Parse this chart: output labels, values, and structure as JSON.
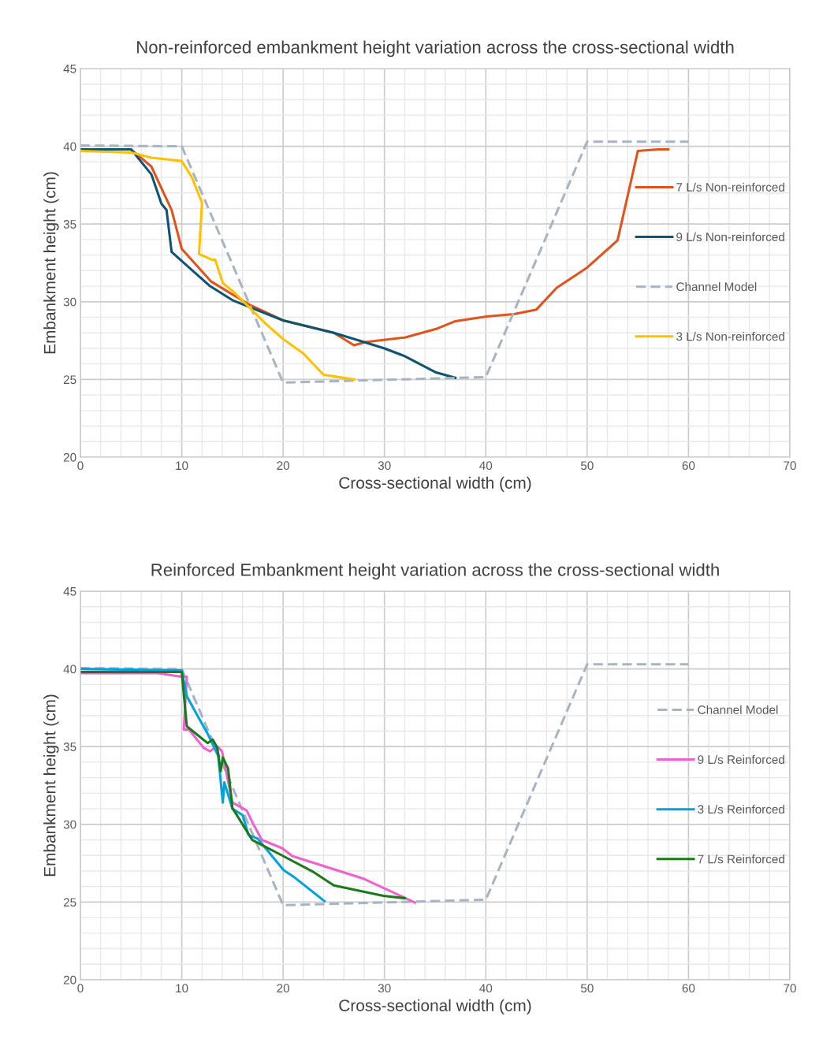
{
  "chart_data": [
    {
      "type": "line",
      "title": "Non-reinforced embankment height variation across the cross-sectional width",
      "xlabel": "Cross-sectional width (cm)",
      "ylabel": "Embankment height (cm)",
      "xlim": [
        0,
        70
      ],
      "xticks": [
        0,
        10,
        20,
        30,
        40,
        50,
        60,
        70
      ],
      "ylim": [
        20,
        45
      ],
      "yticks": [
        20,
        25,
        30,
        35,
        40,
        45
      ],
      "grid": true,
      "legend": "right",
      "marker": "none",
      "series": [
        {
          "name": "7 L/s Non-reinforced",
          "color": "#e0541c",
          "line_style": "solid",
          "x": [
            0,
            5,
            7,
            9,
            10,
            12.9,
            16.7,
            20,
            25,
            27,
            28.1,
            32,
            35.1,
            37,
            40.1,
            42.8,
            45,
            47,
            50,
            53,
            55,
            57,
            58
          ],
          "values": [
            39.8,
            39.8,
            38.7,
            35.9,
            33.4,
            31.3,
            29.8,
            28.8,
            28.0,
            27.2,
            27.4,
            27.7,
            28.25,
            28.75,
            29.05,
            29.2,
            29.5,
            30.9,
            32.2,
            33.95,
            39.7,
            39.8,
            39.8
          ]
        },
        {
          "name": "9 L/s Non-reinforced",
          "color": "#0e5474",
          "line_style": "solid",
          "x": [
            0,
            5,
            7,
            8,
            8.5,
            9,
            12.8,
            15,
            20,
            25,
            28,
            30,
            32,
            35.1,
            37
          ],
          "values": [
            39.8,
            39.8,
            38.2,
            36.3,
            35.9,
            33.2,
            31.0,
            30.1,
            28.8,
            28.0,
            27.4,
            27.0,
            26.5,
            25.45,
            25.1
          ]
        },
        {
          "name": "Channel Model",
          "color": "#a6b4c4",
          "line_style": "dashed",
          "x": [
            0,
            10,
            20,
            40,
            50,
            60
          ],
          "values": [
            40.05,
            40,
            24.8,
            25.15,
            40.3,
            40.3
          ]
        },
        {
          "name": "3 L/s Non-reinforced",
          "color": "#ffc000",
          "line_style": "solid",
          "x": [
            0,
            5,
            7,
            10,
            11,
            12,
            11.7,
            13,
            13.3,
            14.05,
            15.1,
            18.25,
            20,
            22,
            22.9,
            24,
            27
          ],
          "values": [
            39.7,
            39.6,
            39.27,
            39.05,
            38.0,
            36.36,
            33.07,
            32.7,
            32.7,
            31.2,
            30.65,
            28.6,
            27.6,
            26.67,
            26.05,
            25.3,
            25.0
          ]
        }
      ]
    },
    {
      "type": "line",
      "title": "Reinforced Embankment height variation across the cross-sectional width",
      "xlabel": "Cross-sectional width (cm)",
      "ylabel": "Embankment height (cm)",
      "xlim": [
        0,
        70
      ],
      "xticks": [
        0,
        10,
        20,
        30,
        40,
        50,
        60,
        70
      ],
      "ylim": [
        20,
        45
      ],
      "yticks": [
        20,
        25,
        30,
        35,
        40,
        45
      ],
      "grid": true,
      "legend": "right",
      "marker": "none",
      "series": [
        {
          "name": "Channel Model",
          "color": "#a6b4c4",
          "line_style": "dashed",
          "x": [
            0,
            10,
            20,
            40,
            50,
            60
          ],
          "values": [
            40.05,
            40,
            24.8,
            25.15,
            40.3,
            40.3
          ]
        },
        {
          "name": "9 L/s Reinforced",
          "color": "#f060d0",
          "line_style": "solid",
          "x": [
            0,
            7.6,
            10,
            10.5,
            10.2,
            10.7,
            12.2,
            12.8,
            13.45,
            13.97,
            15,
            16.4,
            17.1,
            17.9,
            19.9,
            20.9,
            28,
            33
          ],
          "values": [
            39.73,
            39.73,
            39.5,
            39.5,
            36.1,
            36.1,
            34.9,
            34.7,
            35.04,
            34.7,
            31.4,
            30.9,
            29.96,
            29.0,
            28.47,
            27.96,
            26.49,
            24.97
          ]
        },
        {
          "name": "3 L/s Reinforced",
          "color": "#00a2e0",
          "line_style": "solid",
          "x": [
            0,
            10,
            10.5,
            11.5,
            12.5,
            13.6,
            14.05,
            14.2,
            15,
            16,
            16.6,
            17.5,
            20.06,
            21.1,
            24.08
          ],
          "values": [
            40.0,
            39.9,
            38.24,
            37.05,
            35.9,
            34.4,
            31.4,
            32.7,
            31.0,
            30.6,
            29.3,
            29.08,
            27.05,
            26.6,
            25.06
          ]
        },
        {
          "name": "7 L/s Reinforced",
          "color": "#1a7a1a",
          "line_style": "solid",
          "x": [
            0,
            10,
            10.5,
            12.55,
            13.06,
            13.5,
            13.84,
            14.05,
            14.57,
            15,
            16.95,
            19.9,
            22.9,
            25,
            29.9,
            32
          ],
          "values": [
            39.8,
            39.8,
            36.3,
            35.23,
            35.45,
            34.94,
            33.42,
            34.3,
            33.6,
            31.05,
            29.0,
            28.0,
            26.97,
            26.07,
            25.4,
            25.25
          ]
        }
      ]
    }
  ]
}
